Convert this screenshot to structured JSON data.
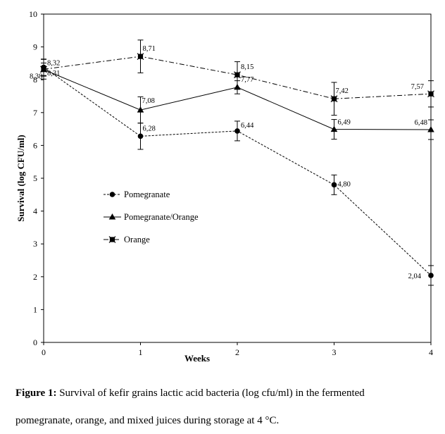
{
  "chart_data": {
    "type": "line",
    "title": "",
    "xlabel": "Weeks",
    "ylabel": "Survival (log CFU/ml)",
    "x": [
      0,
      1,
      2,
      3,
      4
    ],
    "xlim": [
      0,
      4
    ],
    "ylim": [
      0,
      10
    ],
    "x_ticks": [
      "0",
      "1",
      "2",
      "3",
      "4"
    ],
    "y_ticks": [
      "0",
      "1",
      "2",
      "3",
      "4",
      "5",
      "6",
      "7",
      "8",
      "9",
      "10"
    ],
    "grid": false,
    "legend_placement": "left-middle",
    "series": [
      {
        "name": "Pomegranate",
        "marker": "circle",
        "line_style": "dashed",
        "values": [
          8.38,
          6.28,
          6.44,
          4.8,
          2.04
        ],
        "labels": [
          "8,38",
          "6,28",
          "6,44",
          "4,80",
          "2,04"
        ],
        "errors": [
          0.25,
          0.4,
          0.3,
          0.3,
          0.3
        ]
      },
      {
        "name": "Pomegranate/Orange",
        "marker": "triangle",
        "line_style": "solid",
        "values": [
          8.31,
          7.08,
          7.77,
          6.49,
          6.48
        ],
        "labels": [
          "8,31",
          "7,08",
          "7,77",
          "6,49",
          "6,48"
        ],
        "errors": [
          0.2,
          0.4,
          0.2,
          0.3,
          0.3
        ]
      },
      {
        "name": "Orange",
        "marker": "x-square",
        "line_style": "dash-dot",
        "values": [
          8.32,
          8.71,
          8.15,
          7.42,
          7.57
        ],
        "labels": [
          "8,32",
          "8,71",
          "8,15",
          "7,42",
          "7,57"
        ],
        "errors": [
          0.3,
          0.5,
          0.4,
          0.5,
          0.4
        ]
      }
    ]
  },
  "caption": {
    "label": "Figure 1:",
    "line1": " Survival of kefir grains lactic acid bacteria (log cfu/ml) in the fermented",
    "line2": "pomegranate, orange, and mixed juices during storage at 4 °C."
  }
}
